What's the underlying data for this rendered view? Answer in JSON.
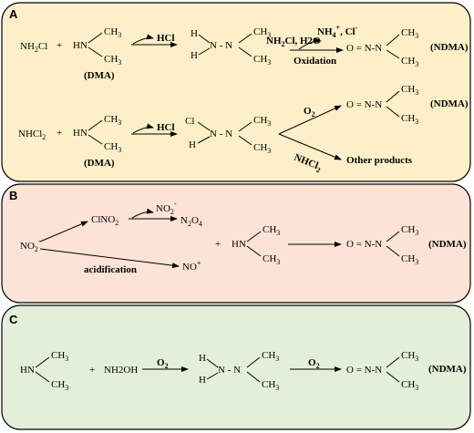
{
  "panels": {
    "a": {
      "label": "A",
      "color": "#fdf0c8",
      "row1": {
        "reactant1": "NH",
        "reactant1_sub": "2",
        "reactant1_tail": "Cl",
        "plus": "+",
        "dma_hn": "HN",
        "dma_ch3_top": "CH",
        "dma_ch3_bot": "CH",
        "sub3": "3",
        "dma_label": "(DMA)",
        "arrow1_label": "HCl",
        "udmh_h_top": "H",
        "udmh_h_bot": "H",
        "udmh_core": "N - N",
        "udmh_ch3_top": "CH",
        "udmh_ch3_bot": "CH",
        "arrow2_reagent": "NH",
        "arrow2_reagent_sub": "2",
        "arrow2_reagent_tail": "Cl, H2O",
        "arrow2_byproduct": "NH",
        "arrow2_byproduct_sub": "4",
        "arrow2_byproduct_sup": "+",
        "arrow2_byproduct_tail": ", Cl",
        "arrow2_byproduct_sup2": "-",
        "arrow2_label": "Oxidation",
        "product_core": "O = N-N",
        "product_ch3_top": "CH",
        "product_ch3_bot": "CH",
        "product_name": "(NDMA)"
      },
      "row2": {
        "reactant1": "NHCl",
        "reactant1_sub": "2",
        "plus": "+",
        "dma_hn": "HN",
        "dma_ch3_top": "CH",
        "dma_ch3_bot": "CH",
        "dma_label": "(DMA)",
        "arrow1_label": "HCl",
        "inter_cl": "Cl",
        "inter_h": "H",
        "inter_core": "N - N",
        "inter_ch3_top": "CH",
        "inter_ch3_bot": "CH",
        "branch_up_label": "O",
        "branch_up_sub": "2",
        "branch_down_label": "NHCl",
        "branch_down_sub": "2",
        "product_core": "O = N-N",
        "product_ch3_top": "CH",
        "product_ch3_bot": "CH",
        "product_name": "(NDMA)",
        "other_products": "Other products"
      }
    },
    "b": {
      "label": "B",
      "color": "#fbe3d6",
      "nitrite": "NO",
      "nitrite_sub": "2",
      "nitrite_sup": "-",
      "clno2": "ClNO",
      "clno2_sub": "2",
      "no2_minus": "NO",
      "no2_minus_sub": "2",
      "no2_minus_sup": "-",
      "n2o4": "N",
      "n2o4_sub1": "2",
      "n2o4_mid": "O",
      "n2o4_sub2": "4",
      "acid_label": "acidification",
      "no_plus": "NO",
      "no_plus_sup": "+",
      "plus": "+",
      "dma_hn": "HN",
      "dma_ch3_top": "CH",
      "dma_ch3_bot": "CH",
      "product_core": "O = N-N",
      "product_ch3_top": "CH",
      "product_ch3_bot": "CH",
      "product_name": "(NDMA)"
    },
    "c": {
      "label": "C",
      "color": "#e3efd9",
      "dma_hn": "HN",
      "dma_ch3_top": "CH",
      "dma_ch3_bot": "CH",
      "plus": "+",
      "reactant2": "NH2OH",
      "arrow1_label": "O",
      "arrow1_sub": "2",
      "udmh_h_top": "H",
      "udmh_h_bot": "H",
      "udmh_core": "N - N",
      "udmh_ch3_top": "CH",
      "udmh_ch3_bot": "CH",
      "arrow2_label": "O",
      "arrow2_sub": "2",
      "product_core": "O = N-N",
      "product_ch3_top": "CH",
      "product_ch3_bot": "CH",
      "product_name": "(NDMA)"
    }
  }
}
